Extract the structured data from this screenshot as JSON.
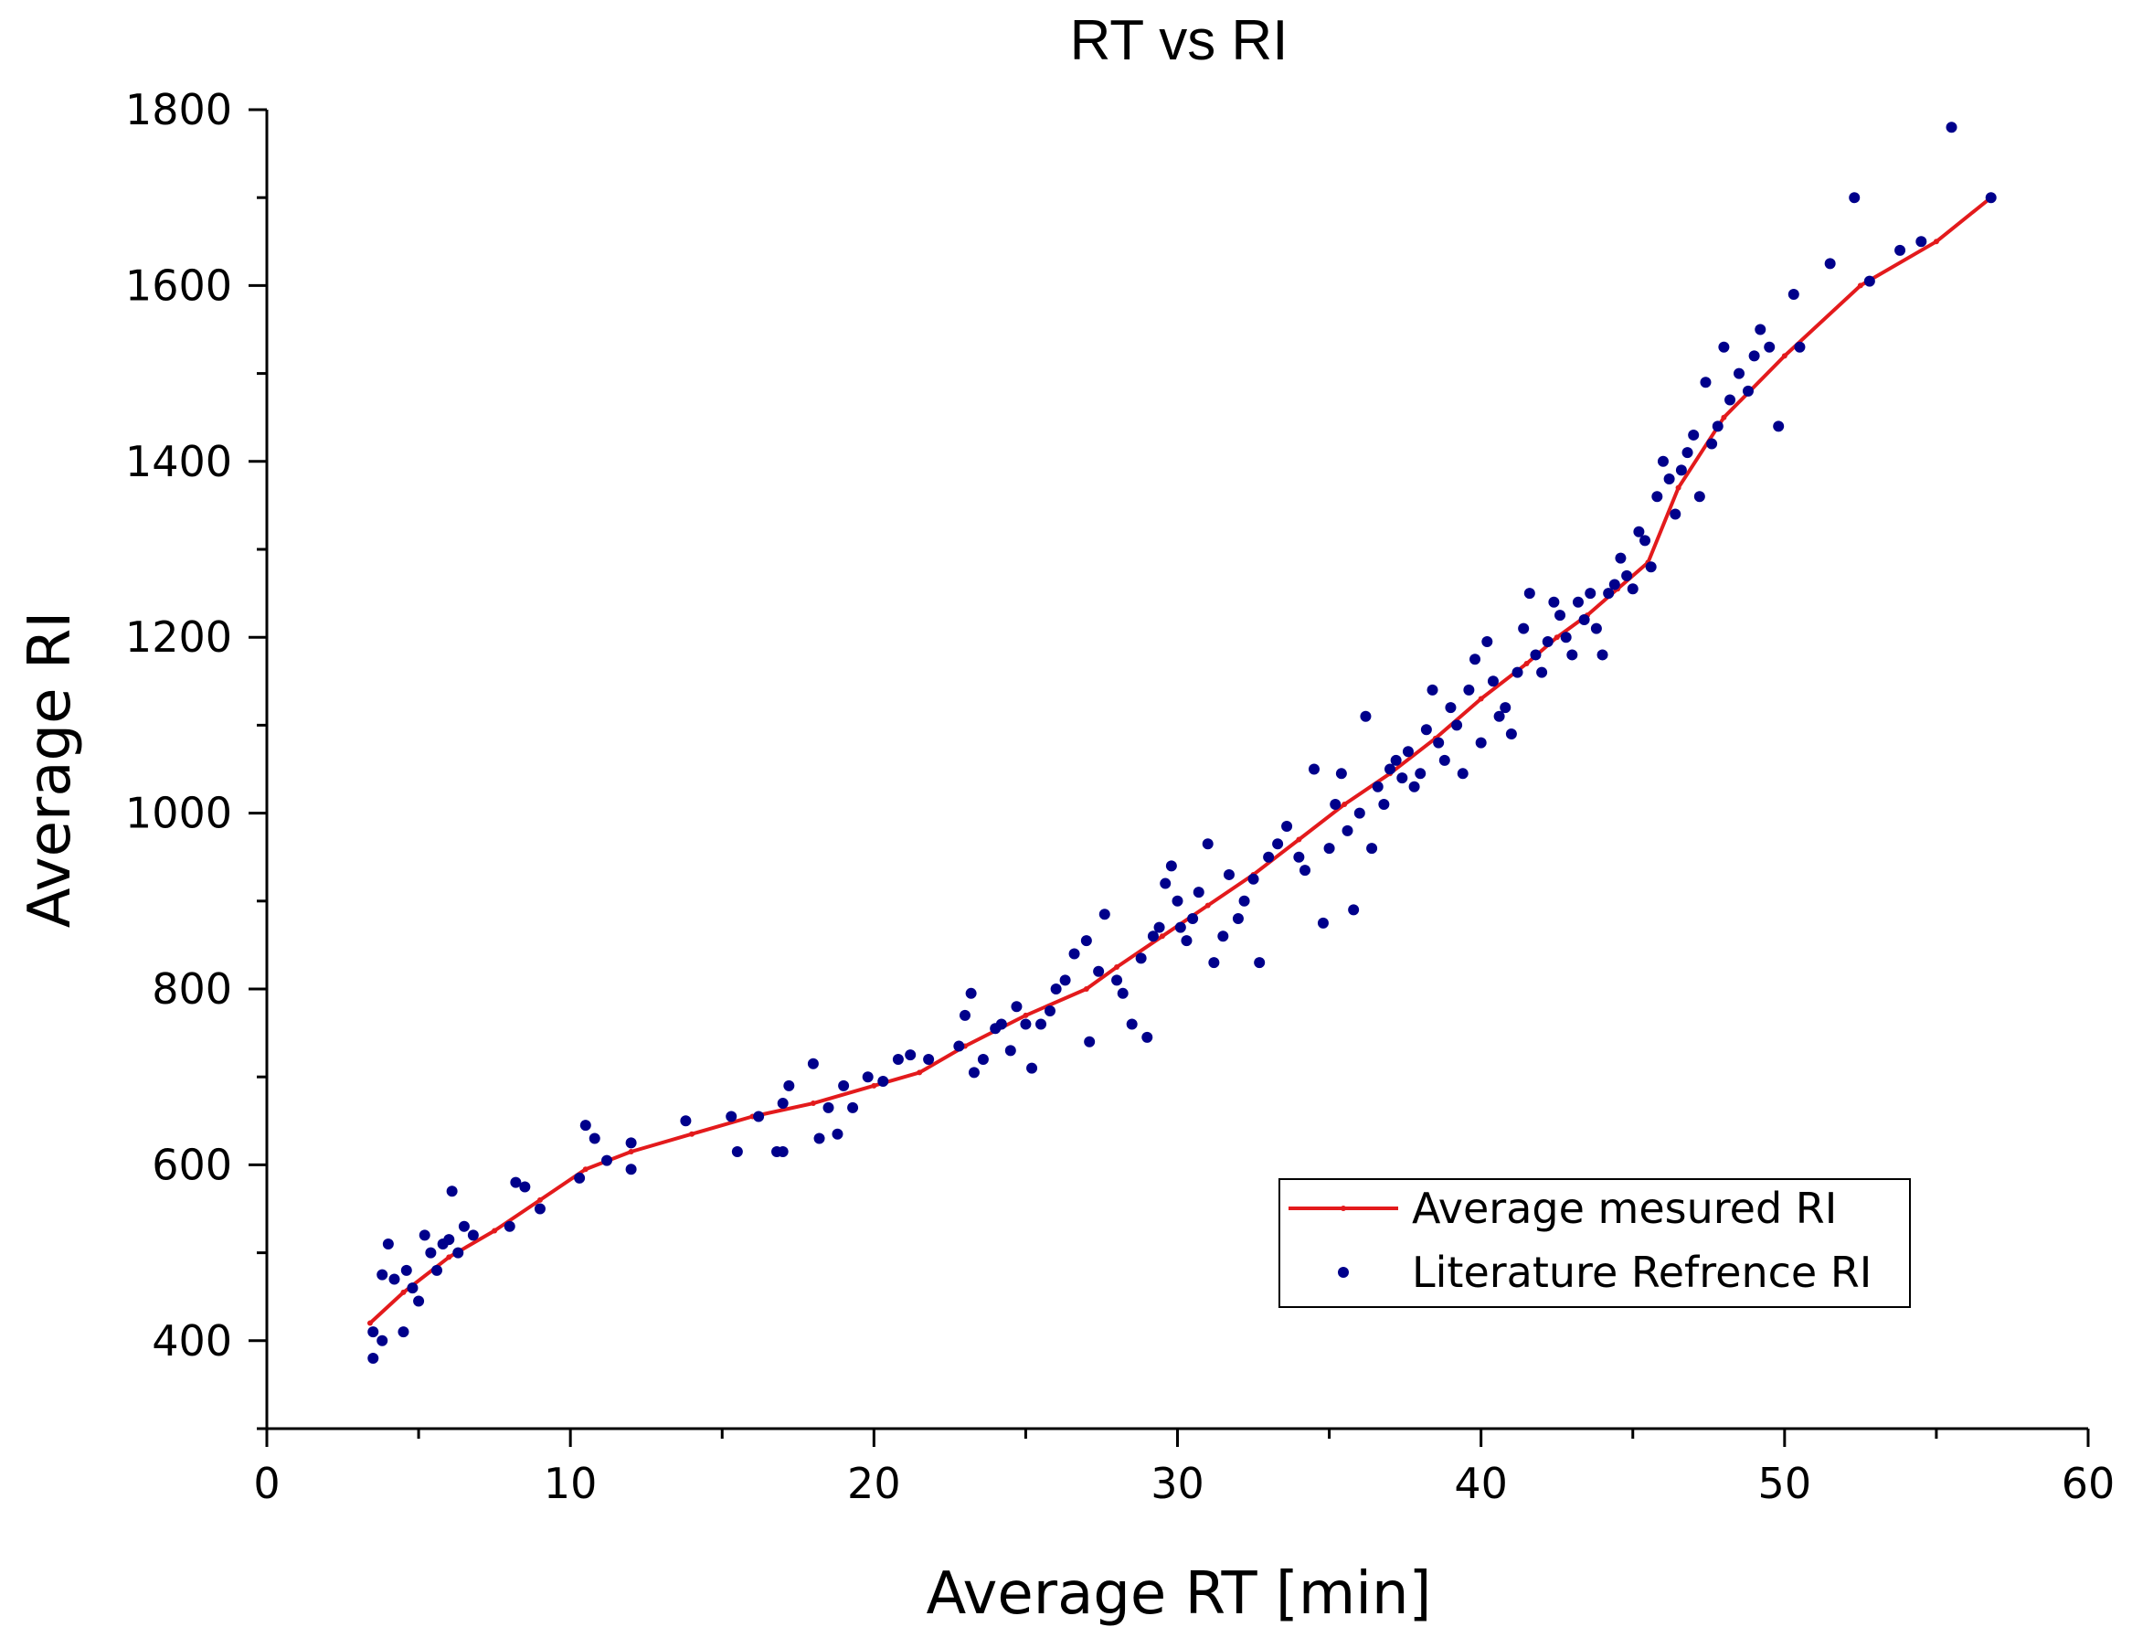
{
  "chart_data": {
    "type": "scatter",
    "title": "RT vs RI",
    "xlabel": "Average RT [min]",
    "ylabel": "Average RI",
    "xlim": [
      0,
      60
    ],
    "ylim": [
      300,
      1800
    ],
    "x_ticks": [
      0,
      10,
      20,
      30,
      40,
      50,
      60
    ],
    "y_ticks": [
      400,
      600,
      800,
      1000,
      1200,
      1400,
      1600,
      1800
    ],
    "x_tick_labels": [
      "0",
      "10",
      "20",
      "30",
      "40",
      "50",
      "60"
    ],
    "y_tick_labels": [
      "400",
      "600",
      "800",
      "1000",
      "1200",
      "1400",
      "1600",
      "1800"
    ],
    "grid": false,
    "legend_position": "lower-right",
    "colors": {
      "line": "#e31a1c",
      "scatter": "#00008b",
      "axis": "#000000"
    },
    "series": [
      {
        "name": "Average mesured RI",
        "kind": "line",
        "x": [
          3.4,
          4.5,
          6,
          7.5,
          9,
          10.5,
          12,
          14,
          16,
          18,
          20,
          21.5,
          23,
          25,
          27,
          28,
          29.5,
          31,
          32.5,
          34,
          35.5,
          37,
          38.5,
          40,
          41.5,
          42.5,
          43.5,
          44.5,
          45.5,
          46.5,
          48,
          50,
          52.5,
          55,
          56.8
        ],
        "y": [
          420,
          455,
          495,
          525,
          560,
          595,
          615,
          635,
          655,
          670,
          690,
          705,
          735,
          770,
          800,
          825,
          860,
          895,
          930,
          970,
          1010,
          1045,
          1085,
          1130,
          1170,
          1200,
          1225,
          1255,
          1285,
          1370,
          1450,
          1520,
          1600,
          1650,
          1700
        ]
      },
      {
        "name": "Literature Refrence RI",
        "kind": "scatter",
        "points": [
          [
            3.5,
            380
          ],
          [
            3.5,
            410
          ],
          [
            3.8,
            400
          ],
          [
            3.8,
            475
          ],
          [
            4.0,
            510
          ],
          [
            4.2,
            470
          ],
          [
            4.5,
            410
          ],
          [
            4.6,
            480
          ],
          [
            4.8,
            460
          ],
          [
            5.0,
            445
          ],
          [
            5.2,
            520
          ],
          [
            5.4,
            500
          ],
          [
            5.6,
            480
          ],
          [
            5.8,
            510
          ],
          [
            6.0,
            515
          ],
          [
            6.1,
            570
          ],
          [
            6.3,
            500
          ],
          [
            6.5,
            530
          ],
          [
            6.8,
            520
          ],
          [
            8.0,
            530
          ],
          [
            8.2,
            580
          ],
          [
            8.5,
            575
          ],
          [
            9.0,
            550
          ],
          [
            10.3,
            585
          ],
          [
            10.5,
            645
          ],
          [
            10.8,
            630
          ],
          [
            11.2,
            605
          ],
          [
            12.0,
            625
          ],
          [
            12.0,
            595
          ],
          [
            13.8,
            650
          ],
          [
            15.3,
            655
          ],
          [
            15.5,
            615
          ],
          [
            16.2,
            655
          ],
          [
            16.8,
            615
          ],
          [
            17.0,
            670
          ],
          [
            17.0,
            615
          ],
          [
            17.2,
            690
          ],
          [
            18.0,
            715
          ],
          [
            18.2,
            630
          ],
          [
            18.5,
            665
          ],
          [
            18.8,
            635
          ],
          [
            19.0,
            690
          ],
          [
            19.3,
            665
          ],
          [
            19.8,
            700
          ],
          [
            20.3,
            695
          ],
          [
            20.8,
            720
          ],
          [
            21.2,
            725
          ],
          [
            21.8,
            720
          ],
          [
            22.8,
            735
          ],
          [
            23.0,
            770
          ],
          [
            23.2,
            795
          ],
          [
            23.3,
            705
          ],
          [
            23.6,
            720
          ],
          [
            24.0,
            755
          ],
          [
            24.2,
            760
          ],
          [
            24.5,
            730
          ],
          [
            24.7,
            780
          ],
          [
            25.0,
            760
          ],
          [
            25.2,
            710
          ],
          [
            25.5,
            760
          ],
          [
            25.8,
            775
          ],
          [
            26.0,
            800
          ],
          [
            26.3,
            810
          ],
          [
            26.6,
            840
          ],
          [
            27.0,
            855
          ],
          [
            27.1,
            740
          ],
          [
            27.4,
            820
          ],
          [
            27.6,
            885
          ],
          [
            28.0,
            810
          ],
          [
            28.2,
            795
          ],
          [
            28.5,
            760
          ],
          [
            28.8,
            835
          ],
          [
            29.0,
            745
          ],
          [
            29.2,
            860
          ],
          [
            29.4,
            870
          ],
          [
            29.6,
            920
          ],
          [
            29.8,
            940
          ],
          [
            30.0,
            900
          ],
          [
            30.1,
            870
          ],
          [
            30.3,
            855
          ],
          [
            30.5,
            880
          ],
          [
            30.7,
            910
          ],
          [
            31.0,
            965
          ],
          [
            31.2,
            830
          ],
          [
            31.5,
            860
          ],
          [
            31.7,
            930
          ],
          [
            32.0,
            880
          ],
          [
            32.2,
            900
          ],
          [
            32.5,
            925
          ],
          [
            32.7,
            830
          ],
          [
            33.0,
            950
          ],
          [
            33.3,
            965
          ],
          [
            33.6,
            985
          ],
          [
            34.0,
            950
          ],
          [
            34.2,
            935
          ],
          [
            34.5,
            1050
          ],
          [
            34.8,
            875
          ],
          [
            35.0,
            960
          ],
          [
            35.2,
            1010
          ],
          [
            35.4,
            1045
          ],
          [
            35.6,
            980
          ],
          [
            35.8,
            890
          ],
          [
            36.0,
            1000
          ],
          [
            36.2,
            1110
          ],
          [
            36.4,
            960
          ],
          [
            36.6,
            1030
          ],
          [
            36.8,
            1010
          ],
          [
            37.0,
            1050
          ],
          [
            37.2,
            1060
          ],
          [
            37.4,
            1040
          ],
          [
            37.6,
            1070
          ],
          [
            37.8,
            1030
          ],
          [
            38.0,
            1045
          ],
          [
            38.2,
            1095
          ],
          [
            38.4,
            1140
          ],
          [
            38.6,
            1080
          ],
          [
            38.8,
            1060
          ],
          [
            39.0,
            1120
          ],
          [
            39.2,
            1100
          ],
          [
            39.4,
            1045
          ],
          [
            39.6,
            1140
          ],
          [
            39.8,
            1175
          ],
          [
            40.0,
            1080
          ],
          [
            40.2,
            1195
          ],
          [
            40.4,
            1150
          ],
          [
            40.6,
            1110
          ],
          [
            40.8,
            1120
          ],
          [
            41.0,
            1090
          ],
          [
            41.2,
            1160
          ],
          [
            41.4,
            1210
          ],
          [
            41.6,
            1250
          ],
          [
            41.8,
            1180
          ],
          [
            42.0,
            1160
          ],
          [
            42.2,
            1195
          ],
          [
            42.4,
            1240
          ],
          [
            42.6,
            1225
          ],
          [
            42.8,
            1200
          ],
          [
            43.0,
            1180
          ],
          [
            43.2,
            1240
          ],
          [
            43.4,
            1220
          ],
          [
            43.6,
            1250
          ],
          [
            43.8,
            1210
          ],
          [
            44.0,
            1180
          ],
          [
            44.2,
            1250
          ],
          [
            44.4,
            1260
          ],
          [
            44.6,
            1290
          ],
          [
            44.8,
            1270
          ],
          [
            45.0,
            1255
          ],
          [
            45.2,
            1320
          ],
          [
            45.4,
            1310
          ],
          [
            45.6,
            1280
          ],
          [
            45.8,
            1360
          ],
          [
            46.0,
            1400
          ],
          [
            46.2,
            1380
          ],
          [
            46.4,
            1340
          ],
          [
            46.6,
            1390
          ],
          [
            46.8,
            1410
          ],
          [
            47.0,
            1430
          ],
          [
            47.2,
            1360
          ],
          [
            47.4,
            1490
          ],
          [
            47.6,
            1420
          ],
          [
            47.8,
            1440
          ],
          [
            48.0,
            1530
          ],
          [
            48.2,
            1470
          ],
          [
            48.5,
            1500
          ],
          [
            48.8,
            1480
          ],
          [
            49.0,
            1520
          ],
          [
            49.2,
            1550
          ],
          [
            49.5,
            1530
          ],
          [
            49.8,
            1440
          ],
          [
            50.3,
            1590
          ],
          [
            50.5,
            1530
          ],
          [
            51.5,
            1625
          ],
          [
            52.3,
            1700
          ],
          [
            52.8,
            1605
          ],
          [
            53.8,
            1640
          ],
          [
            54.5,
            1650
          ],
          [
            55.5,
            1780
          ],
          [
            56.8,
            1700
          ]
        ]
      }
    ]
  }
}
